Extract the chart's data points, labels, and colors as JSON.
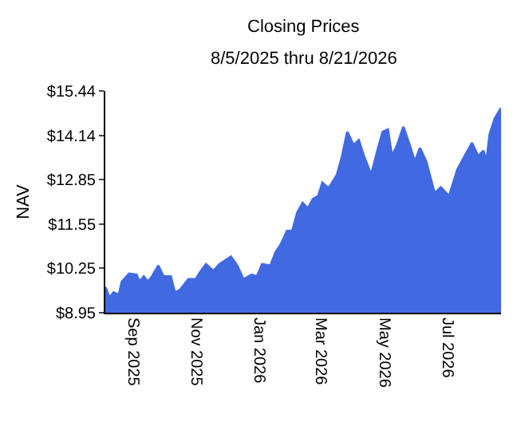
{
  "chart_data": {
    "type": "area",
    "title": "Closing Prices",
    "subtitle": "8/5/2025 thru 8/21/2026",
    "ylabel": "NAV",
    "x": [
      "2025-08-05",
      "2025-08-09",
      "2025-08-13",
      "2025-08-18",
      "2025-08-21",
      "2025-08-28",
      "2025-09-04",
      "2025-09-07",
      "2025-09-11",
      "2025-09-15",
      "2025-09-19",
      "2025-09-25",
      "2025-09-30",
      "2025-10-07",
      "2025-10-11",
      "2025-10-16",
      "2025-10-24",
      "2025-10-31",
      "2025-11-05",
      "2025-11-10",
      "2025-11-17",
      "2025-11-23",
      "2025-12-04",
      "2025-12-10",
      "2025-12-16",
      "2025-12-24",
      "2025-12-29",
      "2026-01-03",
      "2026-01-11",
      "2026-01-16",
      "2026-01-21",
      "2026-01-27",
      "2026-02-01",
      "2026-02-06",
      "2026-02-11",
      "2026-02-16",
      "2026-02-21",
      "2026-02-26",
      "2026-03-02",
      "2026-03-08",
      "2026-03-16",
      "2026-03-21",
      "2026-03-26",
      "2026-04-01",
      "2026-04-06",
      "2026-04-11",
      "2026-04-18",
      "2026-04-24",
      "2026-04-29",
      "2026-05-04",
      "2026-05-08",
      "2026-05-13",
      "2026-05-19",
      "2026-05-25",
      "2026-05-30",
      "2026-06-04",
      "2026-06-10",
      "2026-06-18",
      "2026-06-24",
      "2026-07-02",
      "2026-07-10",
      "2026-07-17",
      "2026-07-24",
      "2026-07-30",
      "2026-08-04",
      "2026-08-07",
      "2026-08-10",
      "2026-08-15",
      "2026-08-21"
    ],
    "series": [
      {
        "color": "#4169e1",
        "values": [
          9.7,
          9.39,
          9.54,
          9.47,
          9.86,
          10.09,
          10.06,
          9.86,
          10.01,
          9.86,
          10.01,
          10.33,
          10.01,
          10.01,
          9.54,
          9.62,
          9.93,
          9.93,
          10.17,
          10.37,
          10.17,
          10.37,
          10.59,
          10.33,
          9.93,
          10.06,
          10.01,
          10.37,
          10.33,
          10.72,
          10.95,
          11.34,
          11.34,
          11.89,
          12.16,
          12.0,
          12.28,
          12.36,
          12.75,
          12.59,
          12.98,
          13.53,
          14.24,
          13.85,
          14.0,
          13.53,
          12.98,
          13.69,
          14.24,
          14.31,
          13.53,
          13.85,
          14.39,
          13.85,
          13.37,
          13.77,
          13.37,
          12.44,
          12.62,
          12.36,
          13.14,
          13.53,
          13.92,
          13.53,
          13.69,
          13.37,
          14.16,
          14.63,
          14.94
        ]
      }
    ],
    "xlim": [
      "2025-08-05",
      "2026-08-21"
    ],
    "xticks": [
      {
        "value": "2025-09-01",
        "label": "Sep 2025"
      },
      {
        "value": "2025-11-01",
        "label": "Nov 2025"
      },
      {
        "value": "2026-01-01",
        "label": "Jan 2026"
      },
      {
        "value": "2026-03-01",
        "label": "Mar 2026"
      },
      {
        "value": "2026-05-01",
        "label": "May 2026"
      },
      {
        "value": "2026-07-01",
        "label": "Jul 2026"
      }
    ],
    "ylim": [
      8.95,
      15.44
    ],
    "yticks": [
      {
        "value": 8.95,
        "label": "$8.95"
      },
      {
        "value": 10.25,
        "label": "$10.25"
      },
      {
        "value": 11.55,
        "label": "$11.55"
      },
      {
        "value": 12.85,
        "label": "$12.85"
      },
      {
        "value": 14.14,
        "label": "$14.14"
      },
      {
        "value": 15.44,
        "label": "$15.44"
      }
    ],
    "line_style": "solid"
  }
}
